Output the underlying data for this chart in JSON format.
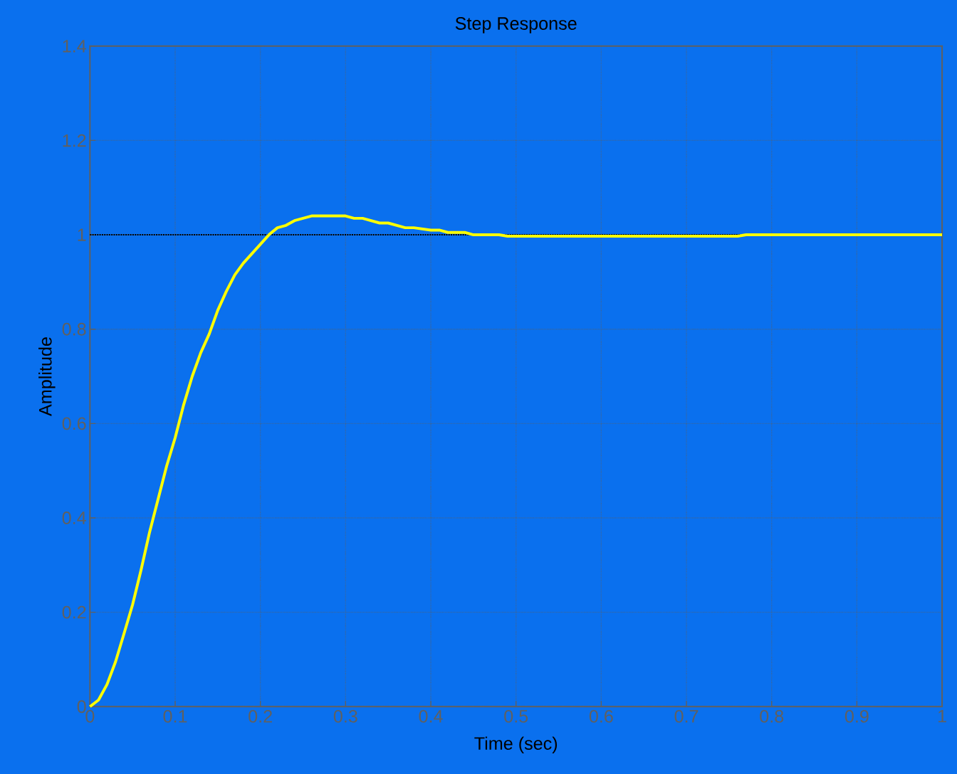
{
  "chart_data": {
    "type": "line",
    "title": "Step Response",
    "xlabel": "Time (sec)",
    "ylabel": "Amplitude",
    "x": [
      0,
      0.01,
      0.02,
      0.03,
      0.04,
      0.05,
      0.06,
      0.07,
      0.08,
      0.09,
      0.1,
      0.11,
      0.12,
      0.13,
      0.14,
      0.15,
      0.16,
      0.17,
      0.18,
      0.19,
      0.2,
      0.21,
      0.22,
      0.23,
      0.24,
      0.26,
      0.3,
      0.31,
      0.32,
      0.34,
      0.35,
      0.37,
      0.38,
      0.4,
      0.41,
      0.42,
      0.44,
      0.45,
      0.48,
      0.49,
      0.76,
      0.77,
      1.0
    ],
    "values": [
      0,
      0.014,
      0.047,
      0.095,
      0.155,
      0.216,
      0.29,
      0.37,
      0.44,
      0.51,
      0.57,
      0.64,
      0.7,
      0.75,
      0.79,
      0.84,
      0.88,
      0.915,
      0.94,
      0.96,
      0.98,
      1.0,
      1.015,
      1.02,
      1.03,
      1.04,
      1.04,
      1.035,
      1.035,
      1.025,
      1.025,
      1.015,
      1.015,
      1.01,
      1.01,
      1.005,
      1.005,
      1.0,
      1.0,
      0.997,
      0.997,
      1.0,
      1.0
    ],
    "color": "#ffff00",
    "line_style": "solid",
    "xlim": [
      0,
      1
    ],
    "ylim": [
      0,
      1.4
    ],
    "xticks": [
      0,
      0.1,
      0.2,
      0.3,
      0.4,
      0.5,
      0.6,
      0.7,
      0.8,
      0.9,
      1
    ],
    "yticks": [
      0,
      0.2,
      0.4,
      0.6,
      0.8,
      1,
      1.2,
      1.4
    ],
    "grid": true,
    "ref_lines": [
      {
        "axis": "y",
        "value": 1,
        "color": "#000000",
        "line_style": "dotted"
      }
    ]
  }
}
